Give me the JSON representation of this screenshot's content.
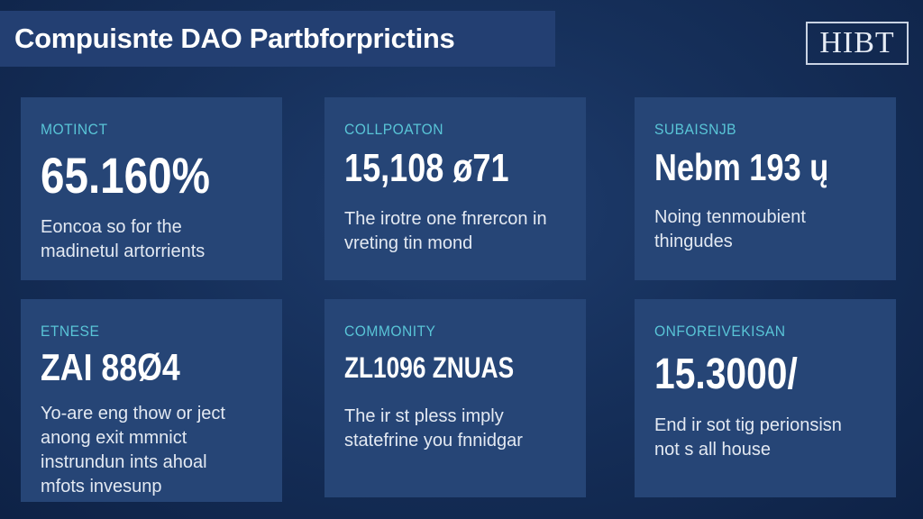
{
  "header": {
    "title": "Compuisnte DAO Partbforprictins"
  },
  "logo": {
    "text": "HIBT"
  },
  "cards": [
    {
      "label": "MOTINCT",
      "value": "65.160%",
      "description": "Eoncoa so for the\nmadinetul artorrients"
    },
    {
      "label": "COLLPOATON",
      "value": "15,108 ø71",
      "description": "The irotre one fnrercon in\nvreting tin mond"
    },
    {
      "label": "SUBAISNJB",
      "value": "Nebm 193 ų",
      "description": "Noing tenmoubient\nthingudes"
    },
    {
      "label": "ETNESE",
      "value": "ZAI 88Ø4",
      "description": "Yo-are eng thow or ject\nanong exit mmnict\ninstrundun ints ahoal\nmfots invesunp"
    },
    {
      "label": "COMMONITY",
      "value": "ZL1096 ZNUAS",
      "description": "The ir st pless imply\nstatefrine you fnnidgar"
    },
    {
      "label": "ONFOREIVEKISAN",
      "value": "15.3000/",
      "description": "End ir sot tig perionsisn\nnot s all house"
    }
  ]
}
